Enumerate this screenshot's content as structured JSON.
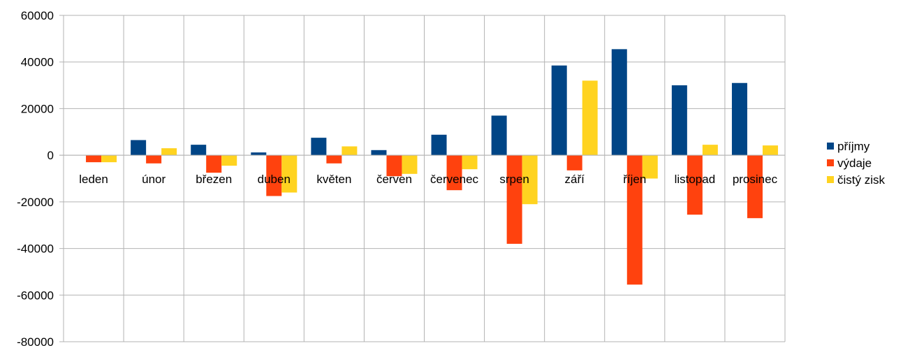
{
  "chart_data": {
    "type": "bar",
    "categories": [
      "leden",
      "únor",
      "březen",
      "duben",
      "květen",
      "červen",
      "červenec",
      "srpen",
      "září",
      "říjen",
      "listopad",
      "prosinec"
    ],
    "series": [
      {
        "name": "příjmy",
        "color": "#004586",
        "values": [
          0,
          6500,
          4500,
          1200,
          7500,
          2200,
          8800,
          17000,
          38500,
          45500,
          30000,
          31000
        ]
      },
      {
        "name": "výdaje",
        "color": "#ff420e",
        "values": [
          -3000,
          -3500,
          -7500,
          -17500,
          -3500,
          -9000,
          -15000,
          -38000,
          -6500,
          -55500,
          -25500,
          -27000
        ]
      },
      {
        "name": "čistý zisk",
        "color": "#ffd320",
        "values": [
          -3000,
          3000,
          -4500,
          -16000,
          3800,
          -8000,
          -6000,
          -21000,
          32000,
          -10000,
          4500,
          4200
        ]
      }
    ],
    "yticks": [
      "60000",
      "40000",
      "20000",
      "0",
      "-20000",
      "-40000",
      "-60000",
      "-80000"
    ],
    "ylim": [
      -80000,
      60000
    ],
    "grid": true,
    "legend_position": "right"
  }
}
